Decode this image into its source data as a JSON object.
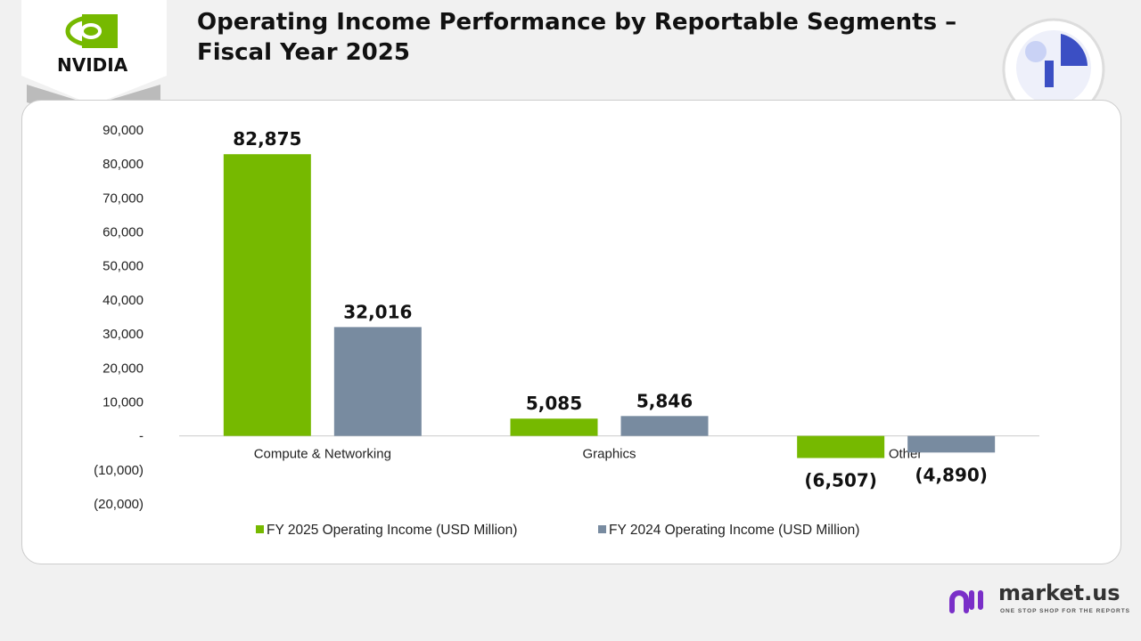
{
  "title": "Operating Income Performance by Reportable Segments – Fiscal Year 2025",
  "logo": {
    "brand": "NVIDIA"
  },
  "footer": {
    "brand": "market.us",
    "tagline": "ONE STOP SHOP FOR THE REPORTS"
  },
  "chart_data": {
    "type": "bar",
    "categories": [
      "Compute & Networking",
      "Graphics",
      "All Other"
    ],
    "series": [
      {
        "name": "FY 2025 Operating Income (USD Million)",
        "values": [
          82875,
          5085,
          -6507
        ],
        "labels": [
          "82,875",
          "5,085",
          "(6,507)"
        ],
        "color": "#76b900"
      },
      {
        "name": "FY 2024 Operating Income (USD Million)",
        "values": [
          32016,
          5846,
          -4890
        ],
        "labels": [
          "32,016",
          "5,846",
          "(4,890)"
        ],
        "color": "#788ba0"
      }
    ],
    "ylim": [
      -20000,
      90000
    ],
    "yticks": [
      90000,
      80000,
      70000,
      60000,
      50000,
      40000,
      30000,
      20000,
      10000,
      0,
      -10000,
      -20000
    ],
    "ytick_labels": [
      "90,000",
      "80,000",
      "70,000",
      "60,000",
      "50,000",
      "40,000",
      "30,000",
      "20,000",
      "10,000",
      "-",
      "(10,000)",
      "(20,000)"
    ],
    "grid": false,
    "legend": "bottom"
  }
}
